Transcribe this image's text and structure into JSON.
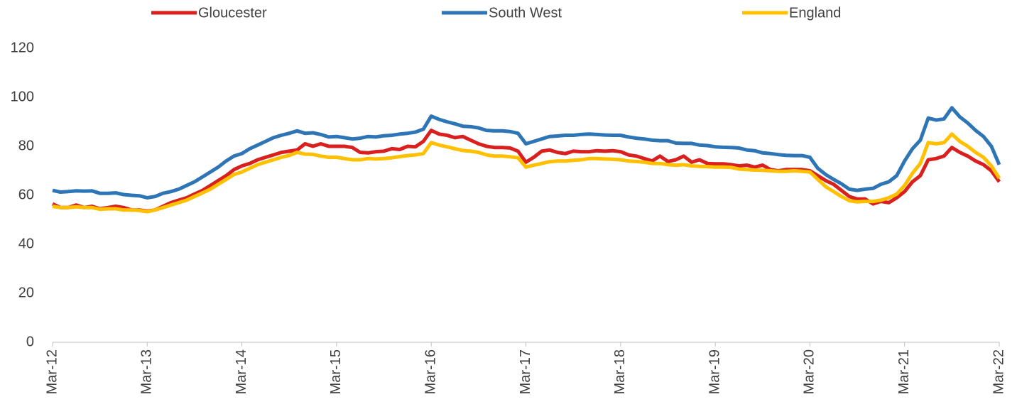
{
  "chart_data": {
    "type": "line",
    "categories": [
      "Mar-12",
      null,
      null,
      null,
      null,
      null,
      null,
      null,
      null,
      null,
      null,
      null,
      "Mar-13",
      null,
      null,
      null,
      null,
      null,
      null,
      null,
      null,
      null,
      null,
      null,
      "Mar-14",
      null,
      null,
      null,
      null,
      null,
      null,
      null,
      null,
      null,
      null,
      null,
      "Mar-15",
      null,
      null,
      null,
      null,
      null,
      null,
      null,
      null,
      null,
      null,
      null,
      "Mar-16",
      null,
      null,
      null,
      null,
      null,
      null,
      null,
      null,
      null,
      null,
      null,
      "Mar-17",
      null,
      null,
      null,
      null,
      null,
      null,
      null,
      null,
      null,
      null,
      null,
      "Mar-18",
      null,
      null,
      null,
      null,
      null,
      null,
      null,
      null,
      null,
      null,
      null,
      "Mar-19",
      null,
      null,
      null,
      null,
      null,
      null,
      null,
      null,
      null,
      null,
      null,
      "Mar-20",
      null,
      null,
      null,
      null,
      null,
      null,
      null,
      null,
      null,
      null,
      null,
      "Mar-21",
      null,
      null,
      null,
      null,
      null,
      null,
      null,
      null,
      null,
      null,
      null,
      "Mar-22"
    ],
    "series": [
      {
        "name": "Gloucester",
        "color": "#d9201f",
        "values": [
          56.5,
          55,
          55,
          56,
          55,
          55.5,
          54.5,
          55,
          55.5,
          55,
          54,
          54,
          53.5,
          54,
          55.5,
          57,
          58,
          59,
          60.5,
          62,
          64,
          66,
          68,
          70.5,
          72,
          73,
          74.5,
          75.5,
          76.5,
          77.5,
          78,
          78.5,
          81,
          80,
          81,
          80,
          80,
          80,
          79.5,
          77.5,
          77.3,
          77.8,
          78,
          79,
          78.7,
          80,
          79.8,
          82,
          86.5,
          85,
          84.5,
          83.5,
          84,
          82.5,
          81,
          80,
          79.5,
          79.5,
          79.3,
          78,
          73.5,
          75.5,
          78,
          78.5,
          77.5,
          77,
          78,
          77.8,
          77.8,
          78.2,
          78,
          78.2,
          77.8,
          76.5,
          76,
          75,
          74,
          76,
          73.8,
          74.5,
          76,
          73.5,
          74.5,
          73,
          72.8,
          72.8,
          72.5,
          72,
          72.3,
          71.5,
          72.3,
          70.5,
          70,
          70.5,
          70.5,
          70.5,
          70,
          68,
          66,
          64.5,
          62,
          59.5,
          58.5,
          58.5,
          56.5,
          57.5,
          57,
          59,
          61.5,
          65.5,
          68,
          74.5,
          75,
          76,
          79.5,
          77.5,
          76,
          74,
          72.5,
          70,
          65.5
        ]
      },
      {
        "name": "South West",
        "color": "#2e75b6",
        "values": [
          62,
          61.3,
          61.5,
          61.8,
          61.7,
          61.8,
          60.8,
          60.8,
          61,
          60.3,
          60,
          59.8,
          59,
          59.5,
          60.8,
          61.5,
          62.5,
          64,
          65.5,
          67.5,
          69.5,
          71.5,
          74,
          76,
          77,
          79,
          80.5,
          82,
          83.5,
          84.5,
          85.3,
          86.3,
          85.3,
          85.5,
          84.8,
          83.8,
          84,
          83.5,
          83,
          83.3,
          84,
          83.8,
          84.3,
          84.5,
          85,
          85.3,
          85.8,
          87,
          92.3,
          91,
          90,
          89.2,
          88.2,
          88,
          87.5,
          86.5,
          86.3,
          86.3,
          86,
          85.3,
          81,
          82,
          83,
          84,
          84.2,
          84.5,
          84.5,
          84.8,
          85,
          84.8,
          84.6,
          84.5,
          84.5,
          83.8,
          83.3,
          83,
          82.5,
          82.3,
          82.3,
          81.3,
          81.2,
          81.2,
          80.5,
          80.3,
          79.8,
          79.6,
          79.5,
          79.3,
          78.5,
          78.2,
          77.3,
          77,
          76.6,
          76.3,
          76.2,
          76.2,
          75.5,
          71,
          68.5,
          66.5,
          64.7,
          62.5,
          62,
          62.5,
          62.8,
          64.5,
          65.5,
          68,
          74,
          79,
          82.5,
          91.5,
          90.7,
          91.2,
          95.7,
          92,
          89.5,
          86.5,
          84,
          80,
          72.5
        ]
      },
      {
        "name": "England",
        "color": "#ffc000",
        "values": [
          55.5,
          55,
          55,
          55.3,
          55,
          55,
          54.3,
          54.5,
          54.5,
          54,
          54,
          53.8,
          53.3,
          54,
          55,
          56,
          57,
          58,
          59.5,
          61,
          62.5,
          64.5,
          66.5,
          68.5,
          69.5,
          71,
          72.5,
          73.5,
          74.5,
          75.5,
          76.3,
          77.5,
          76.8,
          76.7,
          76,
          75.5,
          75.5,
          75,
          74.5,
          74.5,
          75,
          74.8,
          75,
          75.3,
          75.8,
          76.2,
          76.5,
          77,
          81.5,
          80.5,
          79.8,
          79,
          78.3,
          78,
          77.5,
          76.5,
          76,
          76,
          75.7,
          75.3,
          71.5,
          72.3,
          73,
          73.7,
          74,
          74,
          74.3,
          74.5,
          75,
          75,
          74.8,
          74.7,
          74.5,
          74,
          73.8,
          73.5,
          73,
          73,
          72.5,
          72.3,
          72.5,
          72,
          71.8,
          71.7,
          71.5,
          71.5,
          71.4,
          70.7,
          70.5,
          70.3,
          70.2,
          70,
          69.8,
          69.8,
          70,
          69.8,
          69.5,
          66.5,
          63.5,
          61.5,
          59.5,
          57.8,
          57.3,
          57.5,
          57.5,
          58,
          59,
          60.5,
          64,
          69,
          73,
          81.5,
          81,
          81.5,
          85,
          82,
          80,
          77.5,
          75.5,
          72,
          67
        ]
      }
    ],
    "ylim": [
      0,
      120
    ],
    "yticks": [
      0,
      20,
      40,
      60,
      80,
      100,
      120
    ],
    "grid": false,
    "legend": "top"
  }
}
